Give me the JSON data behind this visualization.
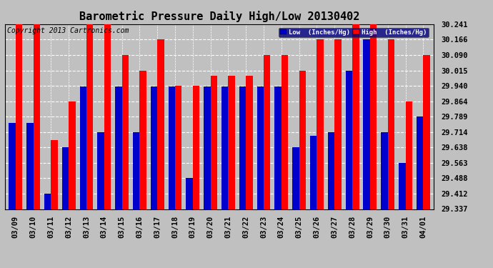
{
  "title": "Barometric Pressure Daily High/Low 20130402",
  "copyright": "Copyright 2013 Cartronics.com",
  "legend_low": "Low  (Inches/Hg)",
  "legend_high": "High  (Inches/Hg)",
  "dates": [
    "03/09",
    "03/10",
    "03/11",
    "03/12",
    "03/13",
    "03/14",
    "03/15",
    "03/16",
    "03/17",
    "03/18",
    "03/19",
    "03/20",
    "03/21",
    "03/22",
    "03/23",
    "03/24",
    "03/25",
    "03/26",
    "03/27",
    "03/28",
    "03/29",
    "03/30",
    "03/31",
    "04/01"
  ],
  "low_values": [
    29.757,
    29.757,
    29.412,
    29.638,
    29.938,
    29.714,
    29.938,
    29.714,
    29.938,
    29.938,
    29.488,
    29.938,
    29.938,
    29.938,
    29.938,
    29.938,
    29.638,
    29.695,
    29.714,
    30.015,
    30.166,
    29.714,
    29.563,
    29.789
  ],
  "high_values": [
    30.241,
    30.241,
    29.676,
    29.864,
    30.241,
    30.241,
    30.09,
    30.015,
    30.166,
    29.94,
    29.94,
    29.99,
    29.99,
    29.99,
    30.09,
    30.09,
    30.015,
    30.166,
    30.166,
    30.241,
    30.241,
    30.166,
    29.864,
    30.09
  ],
  "low_color": "#0000cc",
  "high_color": "#ff0000",
  "bg_color": "#c0c0c0",
  "plot_bg_color": "#c0c0c0",
  "ymin": 29.337,
  "ymax": 30.241,
  "yticks": [
    29.337,
    29.412,
    29.488,
    29.563,
    29.638,
    29.714,
    29.789,
    29.864,
    29.94,
    30.015,
    30.09,
    30.166,
    30.241
  ],
  "grid_color": "#ffffff",
  "title_fontsize": 11,
  "tick_fontsize": 7.5,
  "copyright_fontsize": 7,
  "bar_width": 0.38
}
